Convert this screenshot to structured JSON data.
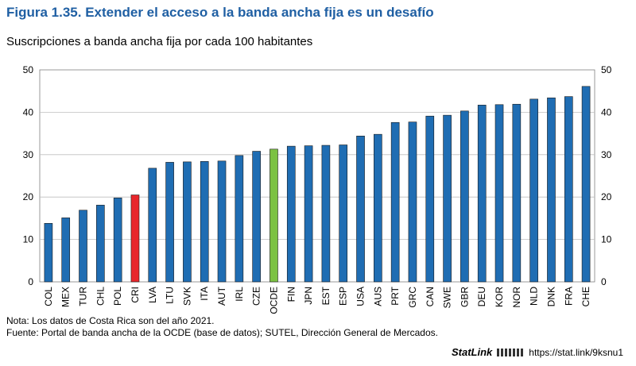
{
  "figure": {
    "title": "Figura 1.35. Extender el acceso a la banda ancha fija es un desafío",
    "subtitle": "Suscripciones a banda ancha fija por cada 100 habitantes"
  },
  "notes": {
    "nota": "Nota: Los datos de Costa Rica son del año 2021.",
    "fuente": "Fuente: Portal de banda ancha de la OCDE (base de datos); SUTEL, Dirección General de Mercados."
  },
  "statlink": {
    "brand": "StatLink",
    "logo_icon": "oecd-logo-icon",
    "url": "https://stat.link/9ksnu1"
  },
  "chart_data": {
    "type": "bar",
    "title": "",
    "xlabel": "",
    "ylabel": "",
    "ylim": [
      0,
      50
    ],
    "yticks": [
      0,
      10,
      20,
      30,
      40,
      50
    ],
    "grid": true,
    "categories": [
      "COL",
      "MEX",
      "TUR",
      "CHL",
      "POL",
      "CRI",
      "LVA",
      "LTU",
      "SVK",
      "ITA",
      "AUT",
      "IRL",
      "CZE",
      "OCDE",
      "FIN",
      "JPN",
      "EST",
      "ESP",
      "USA",
      "AUS",
      "PRT",
      "GRC",
      "CAN",
      "SWE",
      "GBR",
      "DEU",
      "KOR",
      "NOR",
      "NLD",
      "DNK",
      "FRA",
      "CHE"
    ],
    "values": [
      13.8,
      15.1,
      16.9,
      18.1,
      19.8,
      20.5,
      26.8,
      28.2,
      28.3,
      28.4,
      28.5,
      29.8,
      30.8,
      31.3,
      32.0,
      32.1,
      32.2,
      32.3,
      34.4,
      34.8,
      37.6,
      37.7,
      39.1,
      39.3,
      40.3,
      41.7,
      41.8,
      41.9,
      43.1,
      43.4,
      43.7,
      46.1
    ],
    "colors": {
      "default": "#1f6db3",
      "highlight_cri": "#e8262b",
      "highlight_ocde": "#7cc242",
      "grid": "#bfbfbf"
    }
  }
}
